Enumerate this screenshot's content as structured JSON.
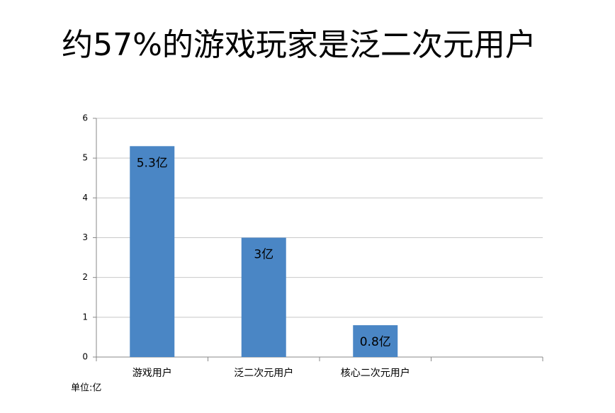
{
  "chart_data": {
    "type": "bar",
    "title": "约57%的游戏玩家是泛二次元用户",
    "categories": [
      "游戏用户",
      "泛二次元用户",
      "核心二次元用户",
      null
    ],
    "values": [
      5.3,
      3,
      0.8,
      null
    ],
    "value_labels": [
      "5.3亿",
      "3亿",
      "0.8亿",
      null
    ],
    "unit_note": "单位:亿",
    "color": "#4a86c5",
    "ylim": [
      0,
      6
    ],
    "yticks": [
      0,
      1,
      2,
      3,
      4,
      5,
      6
    ],
    "grid": true
  }
}
